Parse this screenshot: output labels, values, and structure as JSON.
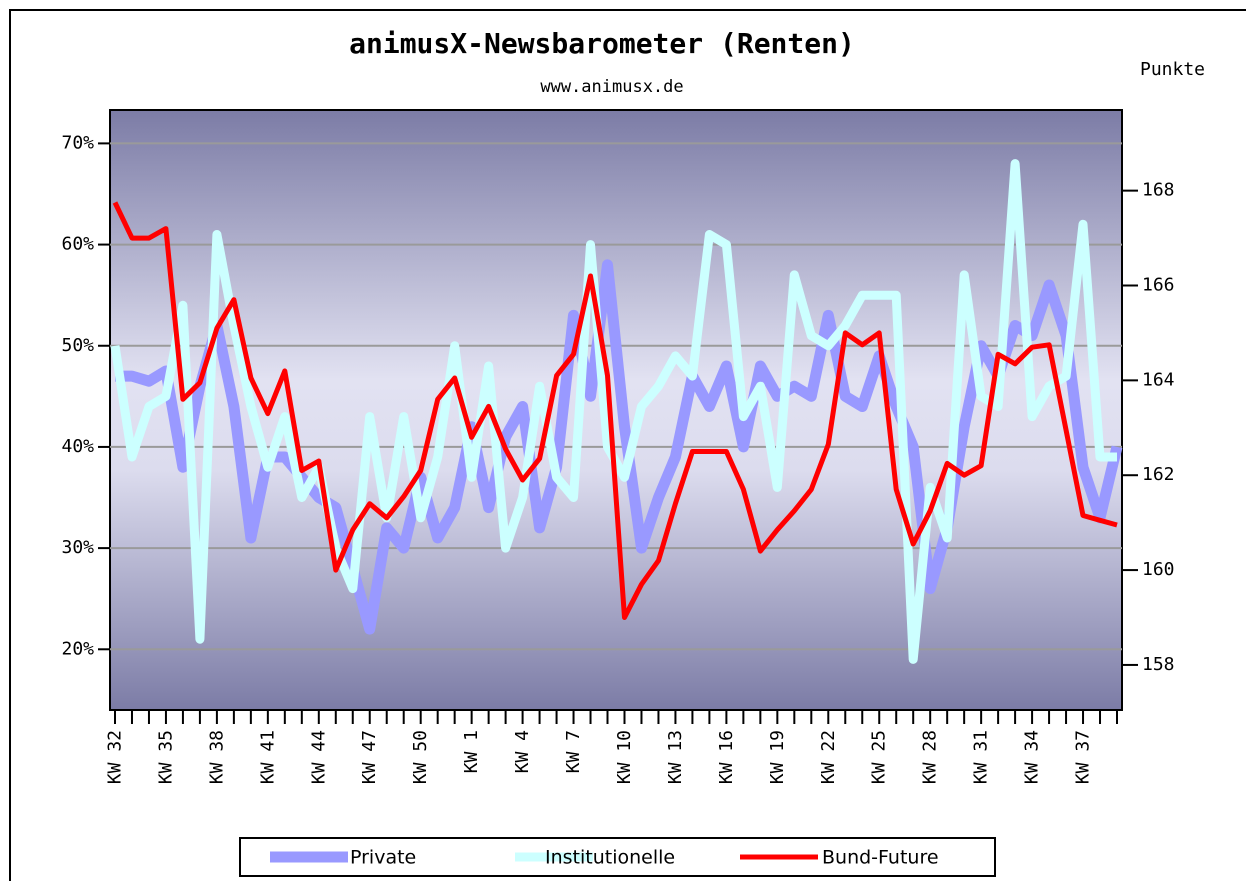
{
  "chart_data": {
    "type": "line",
    "title": "animusX-Newsbarometer (Renten)",
    "subtitle": "www.animusx.de",
    "y2label": "Punkte",
    "categories": [
      "KW 32",
      null,
      null,
      "KW 35",
      null,
      null,
      "KW 38",
      null,
      null,
      "KW 41",
      null,
      null,
      "KW 44",
      null,
      null,
      "KW 47",
      null,
      null,
      "KW 50",
      null,
      null,
      "KW 1",
      null,
      null,
      "KW 4",
      null,
      null,
      "KW 7",
      null,
      null,
      "KW 10",
      null,
      null,
      "KW 13",
      null,
      null,
      "KW 16",
      null,
      null,
      "KW 19",
      null,
      null,
      "KW 22",
      null,
      null,
      "KW 25",
      null,
      null,
      "KW 28",
      null,
      null,
      "KW 31",
      null,
      null,
      "KW 34",
      null,
      null,
      "KW 37",
      null,
      null
    ],
    "series": [
      {
        "name": "Private",
        "color": "#9999ff",
        "values": [
          47,
          47,
          46.5,
          47.5,
          38,
          46,
          52,
          44,
          31,
          39,
          39,
          37,
          35,
          34,
          28,
          22,
          32,
          30,
          37,
          31,
          34,
          42,
          34,
          41,
          44,
          32,
          38,
          53,
          45,
          58,
          42,
          30,
          35,
          39,
          47,
          44,
          48,
          40,
          48,
          45,
          46,
          45,
          53,
          45,
          44,
          49,
          44,
          40,
          26,
          32,
          42,
          50,
          47,
          52,
          51,
          56,
          51,
          38,
          33,
          40
        ]
      },
      {
        "name": "Institutionelle",
        "color": "#ccffff",
        "values": [
          50,
          39,
          44,
          45,
          54,
          21,
          61,
          52,
          44,
          38,
          43,
          35,
          38,
          30,
          26,
          43,
          33,
          43,
          33,
          39,
          50,
          37,
          48,
          30,
          35,
          46,
          37,
          35,
          60,
          40,
          37,
          44,
          46,
          49,
          47,
          61,
          60,
          43,
          46,
          36,
          57,
          51,
          50,
          52,
          55,
          55,
          55,
          19,
          36,
          31,
          57,
          45,
          44,
          68,
          43,
          46,
          47,
          62,
          39,
          39
        ]
      },
      {
        "name": "Bund-Future",
        "color": "#ff0000",
        "axis": "y2",
        "values": [
          167.75,
          167.0,
          167.0,
          167.2,
          163.6,
          163.95,
          165.1,
          165.7,
          164.05,
          163.3,
          164.2,
          162.1,
          162.3,
          160.0,
          160.85,
          161.4,
          161.1,
          161.55,
          162.1,
          163.6,
          164.05,
          162.8,
          163.45,
          162.55,
          161.9,
          162.35,
          164.1,
          164.55,
          166.2,
          164.1,
          159.0,
          159.7,
          160.2,
          161.4,
          162.5,
          162.5,
          162.5,
          161.7,
          160.4,
          160.85,
          161.25,
          161.7,
          162.65,
          165.0,
          164.75,
          165.0,
          161.7,
          160.55,
          161.25,
          162.25,
          162.0,
          162.2,
          164.55,
          164.35,
          164.7,
          164.75,
          162.95,
          161.15,
          161.05,
          160.95
        ]
      }
    ],
    "ylim": [
      14,
      73.3
    ],
    "yticks": [
      {
        "value": 20,
        "label": "20%"
      },
      {
        "value": 30,
        "label": "30%"
      },
      {
        "value": 40,
        "label": "40%"
      },
      {
        "value": 50,
        "label": "50%"
      },
      {
        "value": 60,
        "label": "60%"
      },
      {
        "value": 70,
        "label": "70%"
      }
    ],
    "y2lim": [
      157.05,
      169.7
    ],
    "y2ticks": [
      158,
      160,
      162,
      164,
      166,
      168
    ],
    "grid": true,
    "legend": "bottom"
  }
}
